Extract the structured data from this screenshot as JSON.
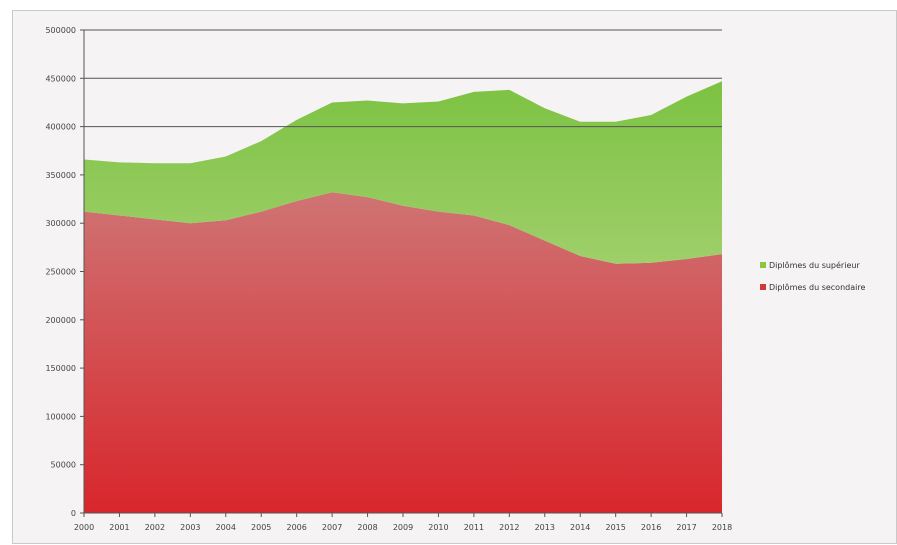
{
  "chart_data": {
    "type": "area",
    "stacked": true,
    "x": [
      2000,
      2001,
      2002,
      2003,
      2004,
      2005,
      2006,
      2007,
      2008,
      2009,
      2010,
      2011,
      2012,
      2013,
      2014,
      2015,
      2016,
      2017,
      2018
    ],
    "x_tick_labels": [
      "2000",
      "2001",
      "2002",
      "2003",
      "2004",
      "2005",
      "2006",
      "2007",
      "2008",
      "2009",
      "2010",
      "2011",
      "2012",
      "2013",
      "2014",
      "2015",
      "2016",
      "2017",
      "2018"
    ],
    "y_tick_labels": [
      "0",
      "50000",
      "100000",
      "150000",
      "200000",
      "250000",
      "300000",
      "350000",
      "400000",
      "450000",
      "500000"
    ],
    "ylim": [
      0,
      500000
    ],
    "grid": "horizontal lines at 400000, 450000 and 500000",
    "legend_position": "right",
    "series": [
      {
        "name": "Diplômes du secondaire",
        "color": "#cf5b5b",
        "values": [
          312000,
          308000,
          304000,
          300000,
          303000,
          312000,
          323000,
          332000,
          327000,
          318000,
          312000,
          308000,
          298000,
          282000,
          266000,
          258000,
          259000,
          263000,
          268000
        ]
      },
      {
        "name": "Diplômes du supérieur",
        "color": "#8cc63f",
        "values": [
          54000,
          55000,
          58000,
          62000,
          66000,
          73000,
          84000,
          93000,
          100000,
          106000,
          114000,
          128000,
          140000,
          137000,
          139000,
          147000,
          153000,
          168000,
          179000
        ]
      }
    ]
  }
}
